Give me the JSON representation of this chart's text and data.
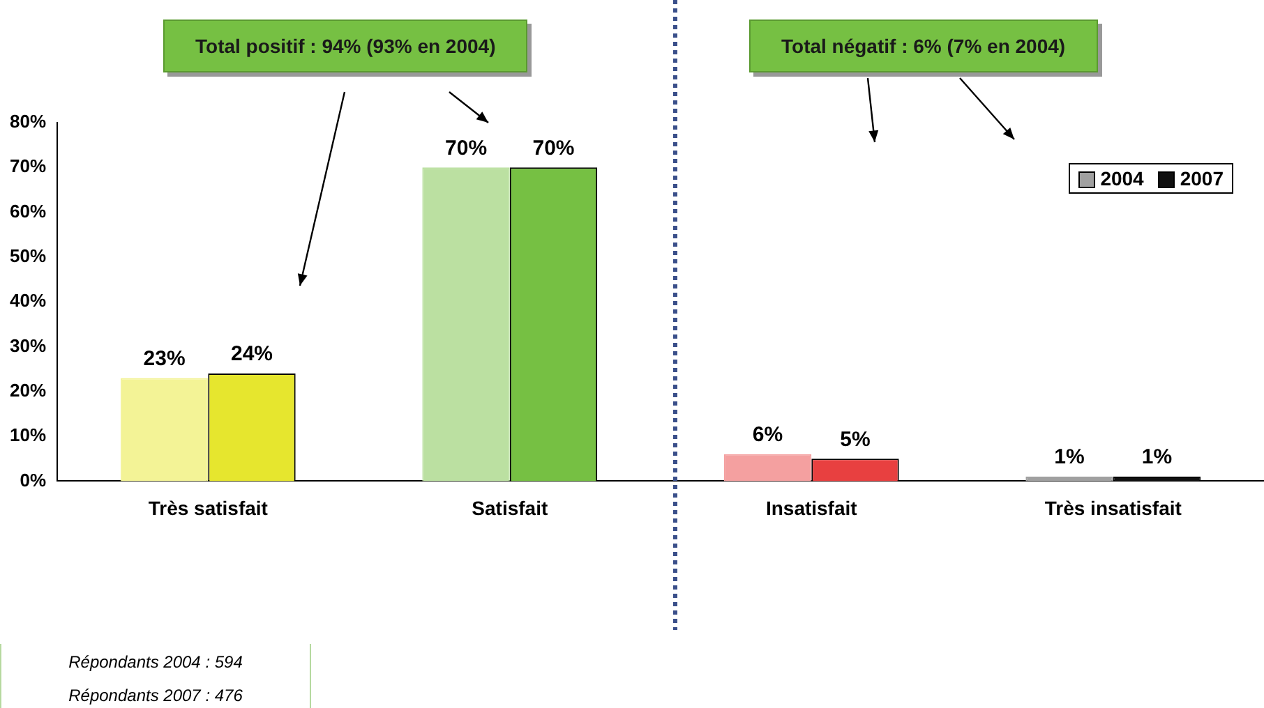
{
  "chart_data": {
    "type": "bar",
    "categories": [
      "Très satisfait",
      "Satisfait",
      "Insatisfait",
      "Très insatisfait"
    ],
    "series": [
      {
        "name": "2004",
        "color": "#a0a0a0",
        "colors": [
          "#f3f396",
          "#bbe0a1",
          "#f4a0a0",
          "#a0a0a0"
        ],
        "values": [
          23,
          70,
          6,
          1
        ]
      },
      {
        "name": "2007",
        "color": "#101010",
        "colors": [
          "#e6e62e",
          "#76c043",
          "#e84040",
          "#101010"
        ],
        "values": [
          24,
          70,
          5,
          1
        ]
      }
    ],
    "ylim": [
      0,
      80
    ],
    "yticks": [
      {
        "value": 0,
        "label": "0%"
      },
      {
        "value": 10,
        "label": "10%"
      },
      {
        "value": 20,
        "label": "20%"
      },
      {
        "value": 30,
        "label": "30%"
      },
      {
        "value": 40,
        "label": "40%"
      },
      {
        "value": 50,
        "label": "50%"
      },
      {
        "value": 60,
        "label": "60%"
      },
      {
        "value": 70,
        "label": "70%"
      },
      {
        "value": 80,
        "label": "80%"
      }
    ],
    "value_labels": [
      [
        "23%",
        "70%",
        "6%",
        "1%"
      ],
      [
        "24%",
        "70%",
        "5%",
        "1%"
      ]
    ],
    "grid": false,
    "legend": "top right",
    "annotations": [
      "Total positif : 94% (93% en 2004)",
      "Total négatif : 6% (7% en 2004)",
      "Répondants 2004 : 594",
      "Répondants 2007 : 476"
    ]
  }
}
